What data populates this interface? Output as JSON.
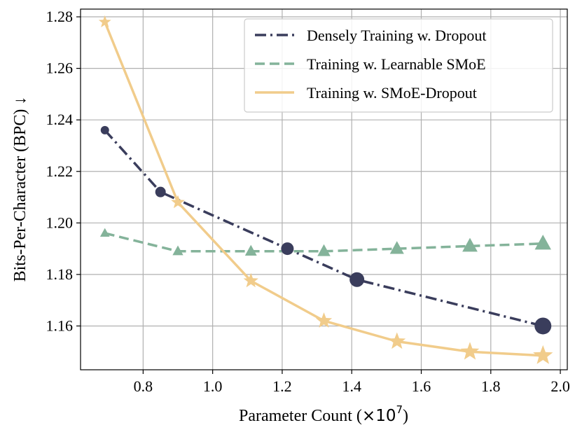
{
  "chart_data": {
    "type": "line",
    "title": "",
    "xlabel": "Parameter Count (×10⁷)",
    "xlabel_main": "Parameter Count (",
    "xlabel_multiplier": "×10",
    "xlabel_exponent": "7",
    "xlabel_close": ")",
    "ylabel": "Bits-Per-Character (BPC)  ↓",
    "xlim": [
      0.62,
      2.02
    ],
    "ylim": [
      1.143,
      1.283
    ],
    "xticks": [
      0.8,
      1.0,
      1.2,
      1.4,
      1.6,
      1.8,
      2.0
    ],
    "xtick_labels": [
      "0.8",
      "1.0",
      "1.2",
      "1.4",
      "1.6",
      "1.8",
      "2.0"
    ],
    "yticks": [
      1.16,
      1.18,
      1.2,
      1.22,
      1.24,
      1.26,
      1.28
    ],
    "ytick_labels": [
      "1.16",
      "1.18",
      "1.20",
      "1.22",
      "1.24",
      "1.26",
      "1.28"
    ],
    "grid": true,
    "legend_position": "top-right",
    "series": [
      {
        "name": "Densely Training w. Dropout",
        "color": "#3a3d5c",
        "line_style": "dashdot",
        "marker": "circle",
        "x": [
          0.69,
          0.85,
          1.215,
          1.415,
          1.95
        ],
        "y": [
          1.236,
          1.212,
          1.19,
          1.178,
          1.16
        ]
      },
      {
        "name": "Training w. Learnable SMoE",
        "color": "#84b39a",
        "line_style": "dashed",
        "marker": "triangle",
        "x": [
          0.69,
          0.9,
          1.11,
          1.32,
          1.53,
          1.74,
          1.95
        ],
        "y": [
          1.196,
          1.189,
          1.189,
          1.189,
          1.19,
          1.191,
          1.192
        ]
      },
      {
        "name": "Training w. SMoE-Dropout",
        "color": "#f1cc8b",
        "line_style": "solid",
        "marker": "star",
        "x": [
          0.69,
          0.9,
          1.11,
          1.32,
          1.53,
          1.74,
          1.95
        ],
        "y": [
          1.278,
          1.208,
          1.1775,
          1.162,
          1.154,
          1.15,
          1.1485
        ]
      }
    ]
  }
}
